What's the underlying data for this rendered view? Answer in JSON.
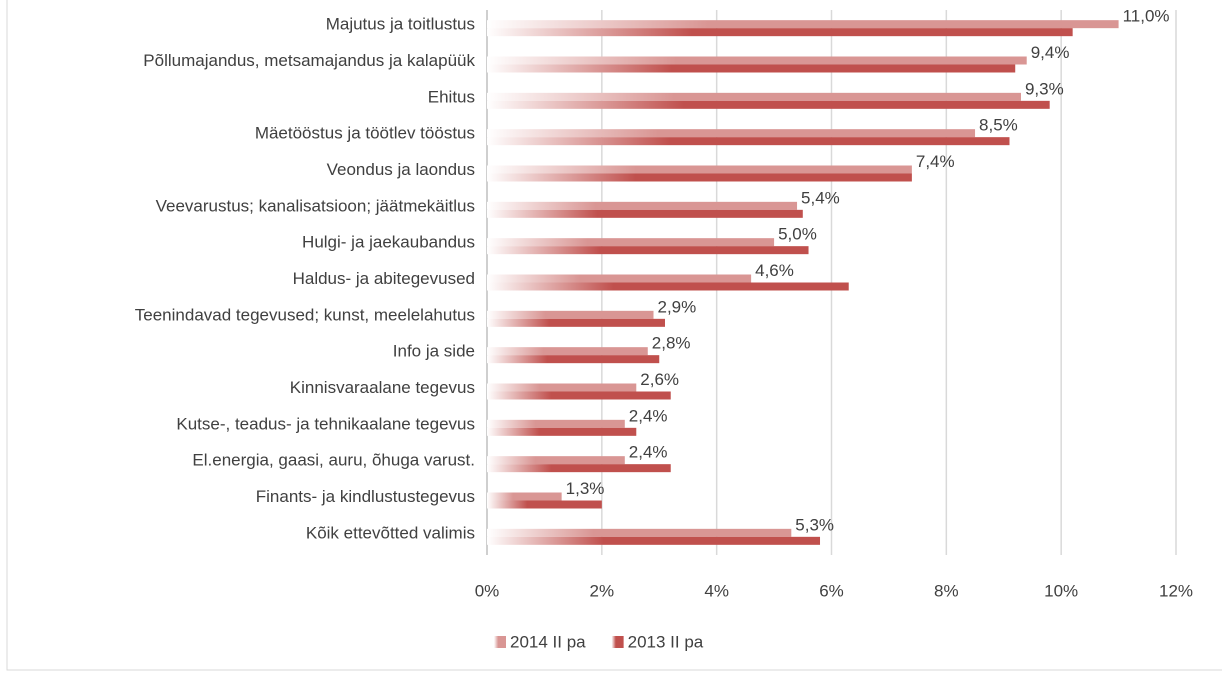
{
  "chart_data": {
    "type": "hbar",
    "categories": [
      "Majutus ja toitlustus",
      "Põllumajandus, metsamajandus ja kalapüük",
      "Ehitus",
      "Mäetööstus ja töötlev tööstus",
      "Veondus ja laondus",
      "Veevarustus; kanalisatsioon; jäätmekäitlus",
      "Hulgi- ja jaekaubandus",
      "Haldus- ja abitegevused",
      "Teenindavad tegevused; kunst, meelelahutus",
      "Info ja side",
      "Kinnisvaraalane tegevus",
      "Kutse-, teadus- ja tehnikaalane tegevus",
      "El.energia, gaasi, auru, õhuga varust.",
      "Finants- ja kindlustustegevus",
      "Kõik ettevõtted valimis"
    ],
    "series": [
      {
        "name": "2014 II pa",
        "color": "#d99694",
        "values": [
          11.0,
          9.4,
          9.3,
          8.5,
          7.4,
          5.4,
          5.0,
          4.6,
          2.9,
          2.8,
          2.6,
          2.4,
          2.4,
          1.3,
          5.3
        ],
        "value_labels": [
          "11,0%",
          "9,4%",
          "9,3%",
          "8,5%",
          "7,4%",
          "5,4%",
          "5,0%",
          "4,6%",
          "2,9%",
          "2,8%",
          "2,6%",
          "2,4%",
          "2,4%",
          "1,3%",
          "5,3%"
        ]
      },
      {
        "name": "2013 II pa",
        "color": "#c0504d",
        "values": [
          10.2,
          9.2,
          9.8,
          9.1,
          7.4,
          5.5,
          5.6,
          6.3,
          3.1,
          3.0,
          3.2,
          2.6,
          3.2,
          2.0,
          5.8
        ]
      }
    ],
    "xlim": [
      0,
      12
    ],
    "xticks": [
      {
        "value": 0,
        "label": "0%"
      },
      {
        "value": 2,
        "label": "2%"
      },
      {
        "value": 4,
        "label": "4%"
      },
      {
        "value": 6,
        "label": "6%"
      },
      {
        "value": 8,
        "label": "8%"
      },
      {
        "value": 10,
        "label": "10%"
      },
      {
        "value": 12,
        "label": "12%"
      }
    ],
    "grid": true,
    "legend": "bottom"
  }
}
